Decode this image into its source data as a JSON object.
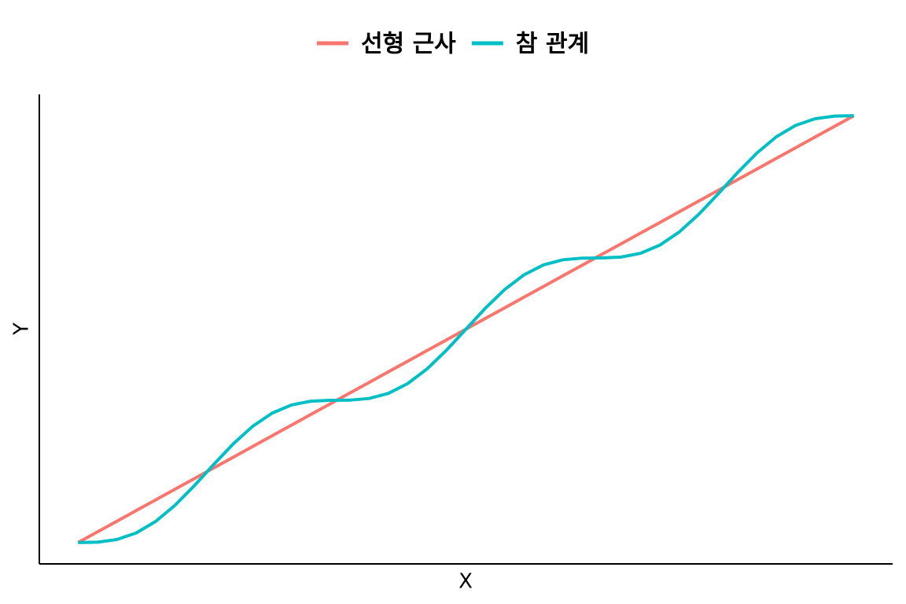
{
  "chart_data": {
    "type": "line",
    "xlabel": "X",
    "ylabel": "Y",
    "x": [
      0,
      0.025,
      0.05,
      0.075,
      0.1,
      0.125,
      0.15,
      0.175,
      0.2,
      0.225,
      0.25,
      0.275,
      0.3,
      0.325,
      0.35,
      0.375,
      0.4,
      0.425,
      0.45,
      0.475,
      0.5,
      0.525,
      0.55,
      0.575,
      0.6,
      0.625,
      0.65,
      0.675,
      0.7,
      0.725,
      0.75,
      0.775,
      0.8,
      0.825,
      0.85,
      0.875,
      0.9,
      0.925,
      0.95,
      0.975,
      1
    ],
    "series": [
      {
        "name": "선형 근사",
        "color": "#F8766D",
        "values": [
          0,
          0.025,
          0.05,
          0.075,
          0.1,
          0.125,
          0.15,
          0.175,
          0.2,
          0.225,
          0.25,
          0.275,
          0.3,
          0.325,
          0.35,
          0.375,
          0.4,
          0.425,
          0.45,
          0.475,
          0.5,
          0.525,
          0.55,
          0.575,
          0.6,
          0.625,
          0.65,
          0.675,
          0.7,
          0.725,
          0.75,
          0.775,
          0.8,
          0.825,
          0.85,
          0.875,
          0.9,
          0.925,
          0.95,
          0.975,
          1
        ]
      },
      {
        "name": "참 관계",
        "color": "#00BFC4",
        "values": [
          0,
          0.0009,
          0.0071,
          0.0226,
          0.0495,
          0.0875,
          0.1336,
          0.1833,
          0.2312,
          0.2723,
          0.3031,
          0.3223,
          0.3312,
          0.3333,
          0.3336,
          0.3375,
          0.3495,
          0.3726,
          0.4071,
          0.4509,
          0.5,
          0.5491,
          0.5929,
          0.6274,
          0.6505,
          0.6625,
          0.6664,
          0.6667,
          0.6688,
          0.6777,
          0.6969,
          0.7277,
          0.7688,
          0.8167,
          0.8664,
          0.9125,
          0.9505,
          0.9774,
          0.9929,
          0.9991,
          1
        ]
      }
    ],
    "xlim": [
      -0.05,
      1.05
    ],
    "ylim": [
      -0.05,
      1.05
    ],
    "xticks": [],
    "yticks": [],
    "grid": false,
    "legend": "top"
  }
}
